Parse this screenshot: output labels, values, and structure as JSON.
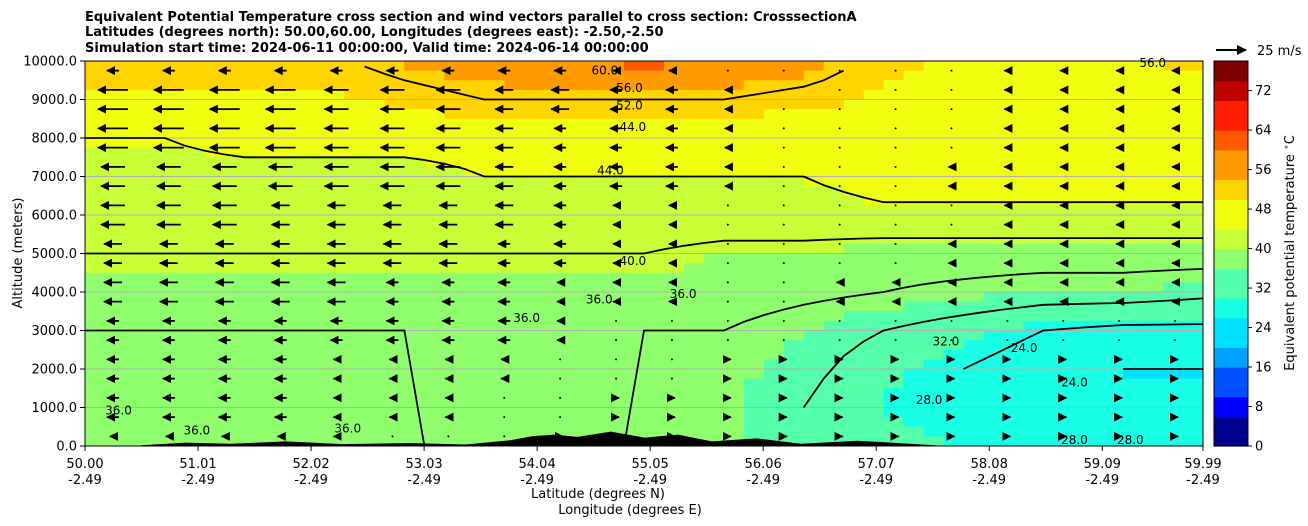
{
  "chart_data": {
    "type": "contourf",
    "title_lines": [
      "Equivalent Potential Temperature cross section and wind vectors parallel to cross section: CrosssectionA",
      "Latitudes (degrees north): 50.00,60.00, Longitudes (degrees east): -2.50,-2.50",
      "Simulation start time: 2024-06-11 00:00:00, Valid time: 2024-06-14 00:00:00"
    ],
    "xlabel_lines": [
      "Latitude (degrees N)",
      "Longitude (degrees E)"
    ],
    "ylabel": "Altitude (meters)",
    "colorbar_label": "Equivalent potential temperature $^\\circ$C",
    "quiver_key": "25 m/s",
    "y_ticks": [
      "0.0",
      "1000.0",
      "2000.0",
      "3000.0",
      "4000.0",
      "5000.0",
      "6000.0",
      "7000.0",
      "8000.0",
      "9000.0",
      "10000.0"
    ],
    "y_tick_values": [
      0,
      1000,
      2000,
      3000,
      4000,
      5000,
      6000,
      7000,
      8000,
      9000,
      10000
    ],
    "ylim": [
      0,
      10000
    ],
    "x_ticks": [
      {
        "lat": "50.00",
        "lon": "-2.49"
      },
      {
        "lat": "51.01",
        "lon": "-2.49"
      },
      {
        "lat": "52.02",
        "lon": "-2.49"
      },
      {
        "lat": "53.03",
        "lon": "-2.49"
      },
      {
        "lat": "54.04",
        "lon": "-2.49"
      },
      {
        "lat": "55.05",
        "lon": "-2.49"
      },
      {
        "lat": "56.06",
        "lon": "-2.49"
      },
      {
        "lat": "57.07",
        "lon": "-2.49"
      },
      {
        "lat": "58.08",
        "lon": "-2.49"
      },
      {
        "lat": "59.09",
        "lon": "-2.49"
      },
      {
        "lat": "59.99",
        "lon": "-2.49"
      }
    ],
    "x_tick_values": [
      50.0,
      51.01,
      52.02,
      53.03,
      54.04,
      55.05,
      56.06,
      57.07,
      58.08,
      59.09,
      59.99
    ],
    "xlim": [
      50.0,
      59.99
    ],
    "colorbar_ticks": [
      0,
      8,
      16,
      24,
      32,
      40,
      48,
      56,
      64,
      72
    ],
    "colorbar_range": [
      0,
      78
    ],
    "colors": [
      "#00008f",
      "#0000ff",
      "#0050ff",
      "#00a0ff",
      "#00e0ff",
      "#19ffe6",
      "#55ffaa",
      "#90ff6e",
      "#c8ff37",
      "#f0ff10",
      "#ffd400",
      "#ff9a00",
      "#ff5a00",
      "#ff1f00",
      "#c00000",
      "#800000"
    ],
    "contour_labels": [
      "60.0",
      "56.0",
      "52.0",
      "44.0",
      "44.0",
      "40.0",
      "36.0",
      "36.0",
      "36.0",
      "32.0",
      "28.0",
      "28.0",
      "28.0",
      "24.0",
      "24.0",
      "36.0",
      "36.0",
      "36.0",
      "56.0"
    ],
    "temperature_grid_rows_top_to_bottom": [
      [
        50,
        50,
        50,
        51,
        54,
        56,
        58,
        60,
        58,
        56,
        50,
        48,
        48,
        48,
        50
      ],
      [
        48,
        48,
        48,
        48,
        50,
        52,
        52,
        52,
        52,
        50,
        48,
        47,
        46,
        46,
        46
      ],
      [
        44,
        44,
        45,
        45,
        45,
        45,
        45,
        45,
        45,
        45,
        46,
        47,
        47,
        48,
        48
      ],
      [
        43,
        43,
        43,
        43,
        43,
        44,
        44,
        44,
        44,
        44,
        46,
        46,
        46,
        46,
        46
      ],
      [
        41,
        42,
        42,
        42,
        42,
        42,
        42,
        42,
        42,
        42,
        43,
        43,
        43,
        43,
        43
      ],
      [
        40,
        40,
        40,
        40,
        40,
        40,
        40,
        40,
        39,
        39,
        38,
        38,
        38,
        38,
        38
      ],
      [
        38,
        38,
        38,
        38,
        38,
        38,
        38,
        38,
        38,
        37,
        36,
        35,
        34,
        34,
        33
      ],
      [
        36,
        36,
        36,
        36,
        36,
        37,
        37,
        36,
        36,
        34,
        32,
        30,
        28,
        27,
        27
      ],
      [
        35,
        35,
        35,
        36,
        36,
        37,
        37,
        36,
        35,
        33,
        30,
        28,
        26,
        24,
        24
      ],
      [
        36,
        37,
        36,
        36,
        36,
        38,
        37,
        37,
        35,
        32,
        29,
        28,
        27,
        27,
        26
      ],
      [
        38,
        38,
        38,
        37,
        36,
        36,
        36,
        36,
        35,
        32,
        30,
        29,
        28,
        28,
        28
      ]
    ],
    "wind_rows_top_to_bottom": [
      [
        -2,
        -2,
        -2,
        -2,
        -2,
        -2,
        -2,
        -1,
        0,
        0,
        0,
        0,
        -1,
        -1,
        -1
      ],
      [
        -5,
        -5,
        -5,
        -4,
        -4,
        -3,
        -3,
        -2,
        -1,
        0,
        0,
        0,
        -1,
        -1,
        -1
      ],
      [
        -5,
        -5,
        -5,
        -4,
        -4,
        -3,
        -2,
        -2,
        -1,
        0,
        0,
        0,
        -1,
        -1,
        -1
      ],
      [
        -4,
        -4,
        -4,
        -4,
        -4,
        -3,
        -2,
        -2,
        -1,
        0,
        0,
        -1,
        -1,
        -1,
        -1
      ],
      [
        -4,
        -4,
        -3,
        -3,
        -3,
        -3,
        -2,
        -1,
        0,
        0,
        0,
        0,
        -1,
        -1,
        -1
      ],
      [
        -3,
        -3,
        -3,
        -3,
        -3,
        -2,
        -2,
        -1,
        0,
        0,
        0,
        -1,
        -1,
        -1,
        -1
      ],
      [
        -3,
        -3,
        -3,
        -3,
        -2,
        -2,
        -1,
        -1,
        0,
        0,
        -1,
        -1,
        -1,
        -1,
        -1
      ],
      [
        -2,
        -2,
        -2,
        -2,
        -2,
        -2,
        -1,
        0,
        0,
        0,
        0,
        0,
        0,
        0,
        0
      ],
      [
        -2,
        -2,
        -2,
        -1,
        -1,
        -1,
        0,
        0,
        1,
        1,
        1,
        1,
        1,
        1,
        1
      ],
      [
        -2,
        -2,
        -2,
        -1,
        -1,
        0,
        0,
        1,
        1,
        1,
        1,
        1,
        1,
        1,
        1
      ],
      [
        -1,
        -1,
        -1,
        -1,
        0,
        0,
        1,
        1,
        1,
        1,
        1,
        1,
        1,
        1,
        1
      ]
    ]
  }
}
